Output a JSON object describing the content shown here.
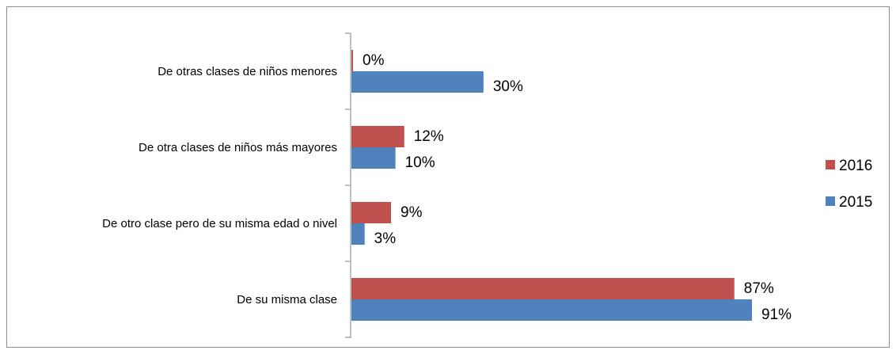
{
  "chart_data": {
    "type": "bar",
    "orientation": "horizontal",
    "categories": [
      "De otras clases de niños menores",
      "De otra clases de niños más mayores",
      "De otro clase pero de su misma edad o nivel",
      "De su misma clase"
    ],
    "series": [
      {
        "name": "2016",
        "color": "#c0504d",
        "values": [
          0,
          12,
          9,
          87
        ],
        "labels": [
          "0%",
          "12%",
          "9%",
          "87%"
        ]
      },
      {
        "name": "2015",
        "color": "#4f81bd",
        "values": [
          30,
          10,
          3,
          91
        ],
        "labels": [
          "30%",
          "10%",
          "3%",
          "91%"
        ]
      }
    ],
    "value_unit": "%",
    "xlim": [
      0,
      100
    ],
    "grid": false,
    "legend_position": "right"
  }
}
